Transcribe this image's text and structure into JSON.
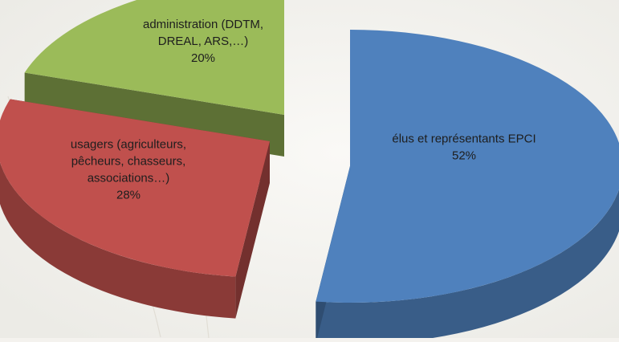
{
  "chart_data": {
    "type": "pie",
    "title": "",
    "style": "3d-exploded",
    "slices": [
      {
        "label_lines": [
          "élus et représentants EPCI"
        ],
        "percent_label": "52%",
        "value": 52,
        "color": "#4f81bd"
      },
      {
        "label_lines": [
          "usagers (agriculteurs,",
          "pêcheurs, chasseurs,",
          "associations…)"
        ],
        "percent_label": "28%",
        "value": 28,
        "color": "#c0504d"
      },
      {
        "label_lines": [
          "administration (DDTM,",
          "DREAL, ARS,…)"
        ],
        "percent_label": "20%",
        "value": 20,
        "color": "#9bbb59"
      }
    ]
  }
}
